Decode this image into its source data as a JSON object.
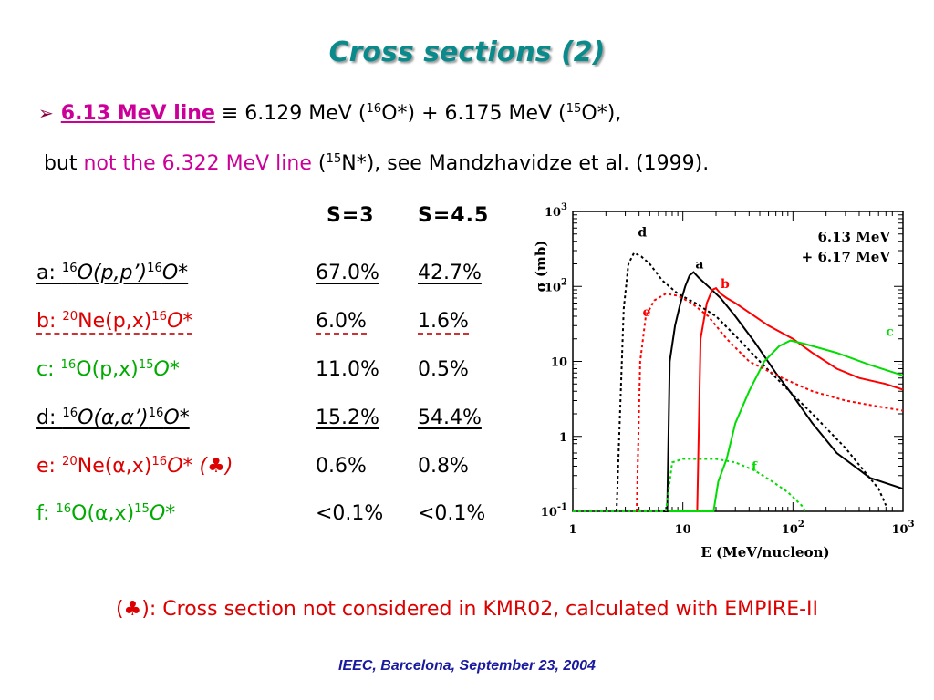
{
  "title": "Cross sections (2)",
  "line1": {
    "bullet": "➢",
    "link": "6.13 MeV line",
    "equiv": " ≡ 6.129 MeV (",
    "s1": "16",
    "p1": "O*) + 6.175 MeV (",
    "s2": "15",
    "p2": "O*),"
  },
  "line2": {
    "pre": "but ",
    "magenta": "not the 6.322 MeV line",
    "p1": " (",
    "s1": "15",
    "p2": "N*), see Mandzhavidze et al. (1999)."
  },
  "table": {
    "headers": [
      "S=3",
      "S=4.5"
    ],
    "rows": [
      {
        "label": [
          "a: ",
          "16",
          "O(p,p’)",
          "16",
          "O*"
        ],
        "s3": "67.0%",
        "s45": "42.7%"
      },
      {
        "label": [
          "b: ",
          "20",
          "Ne(p,x)",
          "16",
          "O*"
        ],
        "s3": "6.0%",
        "s45": "1.6%"
      },
      {
        "label": [
          "c: ",
          "16",
          "O(p,x)",
          "15",
          "O*"
        ],
        "s3": "11.0%",
        "s45": "0.5%"
      },
      {
        "label": [
          "d: ",
          "16",
          "O(α,α’)",
          "16",
          "O*"
        ],
        "s3": "15.2%",
        "s45": "54.4%"
      },
      {
        "label": [
          "e: ",
          "20",
          "Ne(α,x)",
          "16",
          "O* (♣)"
        ],
        "s3": "0.6%",
        "s45": "0.8%"
      },
      {
        "label": [
          "f: ",
          "16",
          "O(α,x)",
          "15",
          "O*"
        ],
        "s3": "<0.1%",
        "s45": "<0.1%"
      }
    ]
  },
  "chart_data": {
    "type": "line",
    "ylabel": "σ (mb)",
    "xlabel": "E (MeV/nucleon)",
    "xscale": "log",
    "yscale": "log",
    "xlim": [
      1,
      1000
    ],
    "ylim": [
      0.1,
      1000
    ],
    "xticks": [
      {
        "base": "1",
        "exp": ""
      },
      {
        "base": "10",
        "exp": ""
      },
      {
        "base": "10",
        "exp": "2"
      },
      {
        "base": "10",
        "exp": "3"
      }
    ],
    "yticks": [
      {
        "base": "10",
        "exp": "-1"
      },
      {
        "base": "1",
        "exp": ""
      },
      {
        "base": "10",
        "exp": ""
      },
      {
        "base": "10",
        "exp": "2"
      },
      {
        "base": "10",
        "exp": "3"
      }
    ],
    "legend": [
      "6.13 MeV",
      "+ 6.17 MeV"
    ],
    "legend_position": "top-right",
    "series": [
      {
        "name": "a",
        "color": "#000000",
        "dash": "solid",
        "labelAt": [
          13,
          175
        ],
        "points": [
          [
            6.5,
            0.1
          ],
          [
            7.2,
            0.1
          ],
          [
            7.6,
            10
          ],
          [
            8.5,
            30
          ],
          [
            9.5,
            60
          ],
          [
            10.5,
            100
          ],
          [
            11.5,
            140
          ],
          [
            12.5,
            155
          ],
          [
            14,
            130
          ],
          [
            17,
            100
          ],
          [
            22,
            70
          ],
          [
            30,
            40
          ],
          [
            45,
            18
          ],
          [
            70,
            7
          ],
          [
            100,
            3.5
          ],
          [
            150,
            1.5
          ],
          [
            250,
            0.6
          ],
          [
            500,
            0.28
          ],
          [
            1000,
            0.2
          ]
        ]
      },
      {
        "name": "b",
        "color": "#ff0000",
        "dash": "solid",
        "labelAt": [
          22,
          95
        ],
        "points": [
          [
            12,
            0.1
          ],
          [
            13.5,
            0.1
          ],
          [
            14.5,
            20
          ],
          [
            16.5,
            60
          ],
          [
            18.5,
            90
          ],
          [
            20,
            95
          ],
          [
            22,
            80
          ],
          [
            25,
            70
          ],
          [
            30,
            60
          ],
          [
            40,
            45
          ],
          [
            60,
            30
          ],
          [
            100,
            20
          ],
          [
            150,
            13
          ],
          [
            250,
            8
          ],
          [
            400,
            6
          ],
          [
            700,
            5
          ],
          [
            1000,
            4.2
          ]
        ]
      },
      {
        "name": "c",
        "color": "#00dd00",
        "dash": "solid",
        "labelAt": [
          700,
          22
        ],
        "points": [
          [
            7.5,
            0.1
          ],
          [
            19,
            0.1
          ],
          [
            21,
            0.25
          ],
          [
            25,
            0.5
          ],
          [
            30,
            1.5
          ],
          [
            40,
            4
          ],
          [
            55,
            10
          ],
          [
            75,
            16
          ],
          [
            95,
            19
          ],
          [
            130,
            17
          ],
          [
            250,
            13
          ],
          [
            500,
            9
          ],
          [
            1000,
            6.5
          ]
        ]
      },
      {
        "name": "d",
        "color": "#000000",
        "dash": "dotted",
        "labelAt": [
          3.9,
          460
        ],
        "points": [
          [
            2.5,
            0.1
          ],
          [
            2.9,
            50
          ],
          [
            3.2,
            200
          ],
          [
            3.6,
            280
          ],
          [
            4.2,
            250
          ],
          [
            5,
            200
          ],
          [
            6.5,
            120
          ],
          [
            9,
            80
          ],
          [
            13,
            60
          ],
          [
            20,
            40
          ],
          [
            30,
            22
          ],
          [
            50,
            10
          ],
          [
            80,
            5
          ],
          [
            150,
            2
          ],
          [
            300,
            0.7
          ],
          [
            600,
            0.2
          ],
          [
            700,
            0.12
          ]
        ]
      },
      {
        "name": "e",
        "color": "#ff0000",
        "dash": "dotted",
        "labelAt": [
          4.3,
          40
        ],
        "points": [
          [
            3.8,
            0.1
          ],
          [
            4.1,
            10
          ],
          [
            4.6,
            40
          ],
          [
            5.5,
            65
          ],
          [
            7,
            80
          ],
          [
            9,
            75
          ],
          [
            12,
            60
          ],
          [
            17,
            40
          ],
          [
            25,
            20
          ],
          [
            40,
            10
          ],
          [
            80,
            6
          ],
          [
            150,
            4
          ],
          [
            300,
            3
          ],
          [
            600,
            2.5
          ],
          [
            1000,
            2.2
          ]
        ]
      },
      {
        "name": "f",
        "color": "#00dd00",
        "dash": "dotted",
        "labelAt": [
          42,
          0.35
        ],
        "points": [
          [
            1,
            0.1
          ],
          [
            7,
            0.1
          ],
          [
            8,
            0.45
          ],
          [
            10,
            0.5
          ],
          [
            20,
            0.5
          ],
          [
            30,
            0.45
          ],
          [
            45,
            0.35
          ],
          [
            65,
            0.25
          ],
          [
            90,
            0.18
          ],
          [
            120,
            0.12
          ],
          [
            130,
            0.1
          ]
        ]
      }
    ]
  },
  "note": {
    "prefix": "(",
    "club": "♣",
    "text": "): Cross section not considered in KMR02, calculated with EMPIRE-II"
  },
  "footer": "IEEC, Barcelona, September 23, 2004"
}
